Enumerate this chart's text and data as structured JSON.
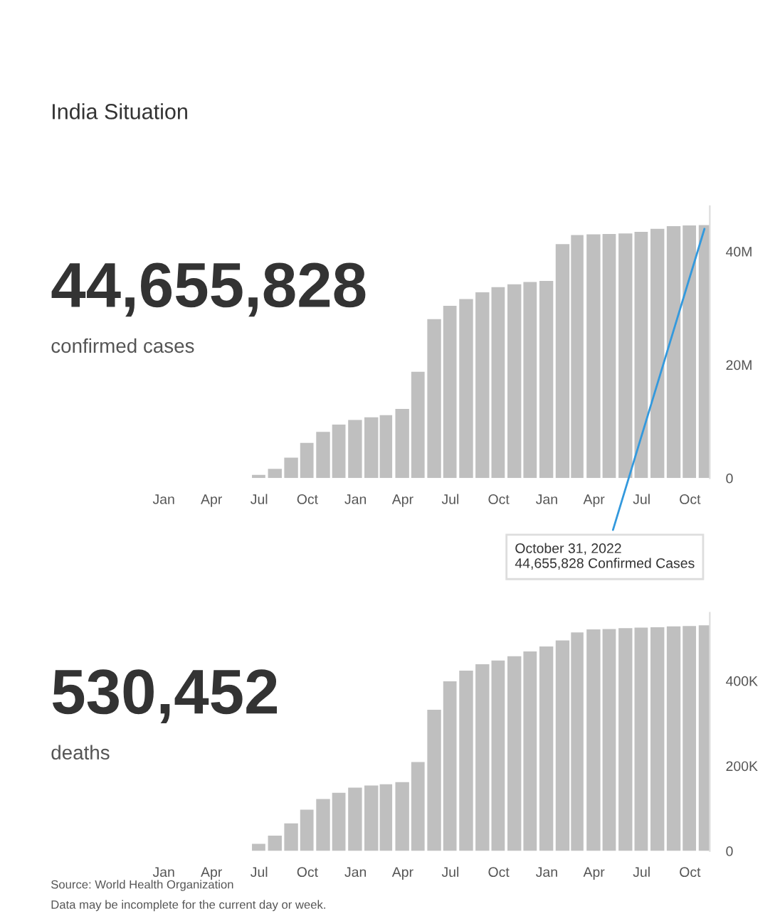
{
  "chart_data": [
    {
      "type": "bar",
      "title": "India Situation",
      "x": [
        "2020-01-31",
        "2020-02-29",
        "2020-03-31",
        "2020-04-30",
        "2020-05-31",
        "2020-06-30",
        "2020-07-31",
        "2020-08-31",
        "2020-09-30",
        "2020-10-31",
        "2020-11-30",
        "2020-12-31",
        "2021-01-31",
        "2021-02-28",
        "2021-03-31",
        "2021-04-30",
        "2021-05-31",
        "2021-06-30",
        "2021-07-31",
        "2021-08-31",
        "2021-09-30",
        "2021-10-31",
        "2021-11-30",
        "2021-12-31",
        "2022-01-31",
        "2022-02-28",
        "2022-03-31",
        "2022-04-30",
        "2022-05-31",
        "2022-06-30",
        "2022-07-31",
        "2022-08-31",
        "2022-09-30",
        "2022-10-31"
      ],
      "values": [
        0,
        0,
        0,
        null,
        null,
        570000,
        1640000,
        3620000,
        6230000,
        8180000,
        9460000,
        10270000,
        10750000,
        11100000,
        12200000,
        18760000,
        28050000,
        30410000,
        31600000,
        32800000,
        33700000,
        34200000,
        34600000,
        34800000,
        41300000,
        42900000,
        43020000,
        43080000,
        43160000,
        43460000,
        44000000,
        44450000,
        44580000,
        44655828
      ],
      "color": "#bfbfbf",
      "xlim": [
        "2020-01-01",
        "2022-11-08"
      ],
      "xticks": [
        {
          "value": "2020-01-01",
          "label": "Jan"
        },
        {
          "value": "2020-04-01",
          "label": "Apr"
        },
        {
          "value": "2020-07-01",
          "label": "Jul"
        },
        {
          "value": "2020-10-01",
          "label": "Oct"
        },
        {
          "value": "2021-01-01",
          "label": "Jan"
        },
        {
          "value": "2021-04-01",
          "label": "Apr"
        },
        {
          "value": "2021-07-01",
          "label": "Jul"
        },
        {
          "value": "2021-10-01",
          "label": "Oct"
        },
        {
          "value": "2022-01-01",
          "label": "Jan"
        },
        {
          "value": "2022-04-01",
          "label": "Apr"
        },
        {
          "value": "2022-07-01",
          "label": "Jul"
        },
        {
          "value": "2022-10-01",
          "label": "Oct"
        }
      ],
      "ylim": [
        0,
        48000000
      ],
      "yticks": [
        0,
        {
          "value": 20000000,
          "label": "20M"
        },
        {
          "value": 40000000,
          "label": "40M"
        }
      ],
      "annotations": [
        "44,655,828",
        "confirmed cases",
        {
          "text": "October 31, 2022\n44,655,828 Confirmed Cases",
          "x": "2022-10-31",
          "y": 44655828
        }
      ]
    },
    {
      "type": "bar",
      "x": [
        "2020-01-31",
        "2020-02-29",
        "2020-03-31",
        "2020-04-30",
        "2020-05-31",
        "2020-06-30",
        "2020-07-31",
        "2020-08-31",
        "2020-09-30",
        "2020-10-31",
        "2020-11-30",
        "2020-12-31",
        "2021-01-31",
        "2021-02-28",
        "2021-03-31",
        "2021-04-30",
        "2021-05-31",
        "2021-06-30",
        "2021-07-31",
        "2021-08-31",
        "2021-09-30",
        "2021-10-31",
        "2021-11-30",
        "2021-12-31",
        "2022-01-31",
        "2022-02-28",
        "2022-03-31",
        "2022-04-30",
        "2022-05-31",
        "2022-06-30",
        "2022-07-31",
        "2022-08-31",
        "2022-09-30",
        "2022-10-31"
      ],
      "values": [
        0,
        0,
        0,
        null,
        null,
        17000,
        36000,
        65000,
        97000,
        122000,
        137000,
        149000,
        154000,
        157000,
        162000,
        209000,
        332000,
        399000,
        424000,
        439000,
        448000,
        458000,
        469000,
        481000,
        495000,
        514000,
        521000,
        522000,
        524000,
        525000,
        526000,
        528000,
        529000,
        530452
      ],
      "color": "#bfbfbf",
      "xlim": [
        "2020-01-01",
        "2022-11-08"
      ],
      "xticks": [
        {
          "value": "2020-01-01",
          "label": "Jan"
        },
        {
          "value": "2020-04-01",
          "label": "Apr"
        },
        {
          "value": "2020-07-01",
          "label": "Jul"
        },
        {
          "value": "2020-10-01",
          "label": "Oct"
        },
        {
          "value": "2021-01-01",
          "label": "Jan"
        },
        {
          "value": "2021-04-01",
          "label": "Apr"
        },
        {
          "value": "2021-07-01",
          "label": "Jul"
        },
        {
          "value": "2021-10-01",
          "label": "Oct"
        },
        {
          "value": "2022-01-01",
          "label": "Jan"
        },
        {
          "value": "2022-04-01",
          "label": "Apr"
        },
        {
          "value": "2022-07-01",
          "label": "Jul"
        },
        {
          "value": "2022-10-01",
          "label": "Oct"
        }
      ],
      "ylim": [
        0,
        560000
      ],
      "yticks": [
        0,
        {
          "value": 200000,
          "label": "200K"
        },
        {
          "value": 400000,
          "label": "400K"
        }
      ],
      "annotations": [
        "530,452",
        "deaths",
        "Source: World Health Organization",
        "Data may be incomplete for the current day or week."
      ]
    }
  ]
}
